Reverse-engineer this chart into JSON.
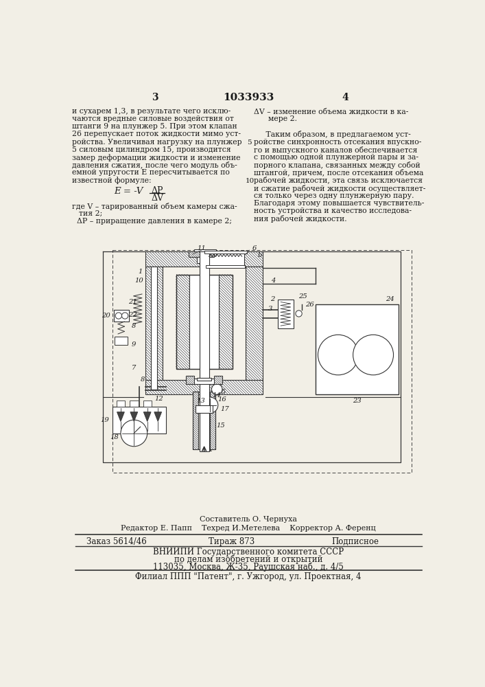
{
  "bg_color": "#f2efe6",
  "text_color": "#1a1a1a",
  "page_num_left": "3",
  "patent_number": "1033933",
  "page_num_right": "4",
  "left_col_lines": [
    "и сухарем 1,3, в результате чего исклю-",
    "чаются вредные силовые воздействия от",
    "штанги 9 на плунжер 5. При этом клапан",
    "26 перепускает поток жидкости мимо уст-",
    "ройства. Увеличивая нагрузку на плунжер",
    "5 силовым цилиндром 15, производится",
    "замер деформации жидкости и изменение",
    "давления сжатия, после чего модуль объ-",
    "емной упругости Е пересчитывается по",
    "известной формуле:"
  ],
  "line_num_5_row": 4,
  "line_num_10_row": 9,
  "right_col_lines": [
    "ΔV – изменение объема жидкости в ка-",
    "      мере 2.",
    "",
    "     Таким образом, в предлагаемом уст-",
    "ройстве синхронность отсекания впускно-",
    "го и выпускного каналов обеспечивается",
    "с помощью одной плунжерной пары и за-",
    "порного клапана, связанных между собой",
    "штангой, причем, после отсекания объема",
    "рабочей жидкости, эта связь исключается",
    "и сжатие рабочей жидкости осуществляет-",
    "ся только через одну плунжерную пару.",
    "Благодаря этому повышается чувствитель-",
    "ность устройства и качество исследова-",
    "ния рабочей жидкости."
  ],
  "footer_line1": "Составитель О. Чернуха",
  "footer_line2": "Редактор Е. Папп    Техред И.Метелева    Корректор А. Ференц",
  "table_col1": "Заказ 5614/46",
  "table_col2": "Тираж 873",
  "table_col3": "Подписное",
  "table_line2": "ВНИИПИ Государственного комитета СССР",
  "table_line3": "по делам изобретений и открытий",
  "table_line4": "113035, Москва, Ж-35, Раушская наб., д. 4/5",
  "filial": "Филиал ППП \"Патент\", г. Ужгород, ул. Проектная, 4"
}
